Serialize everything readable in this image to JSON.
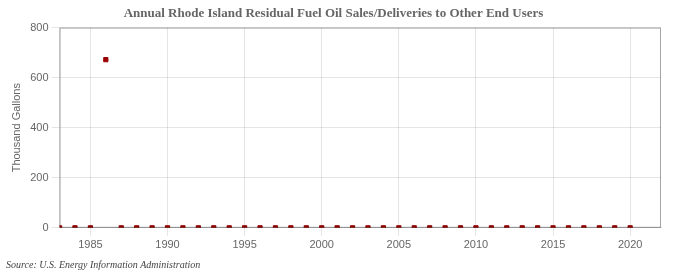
{
  "chart_data": {
    "type": "scatter",
    "title": "Annual Rhode Island Residual Fuel Oil Sales/Deliveries to Other End Users",
    "ylabel": "Thousand Gallons",
    "annotations": [
      "Source: U.S. Energy Information Administration"
    ],
    "x": [
      1983,
      1984,
      1985,
      1986,
      1987,
      1988,
      1989,
      1990,
      1991,
      1992,
      1993,
      1994,
      1995,
      1996,
      1997,
      1998,
      1999,
      2000,
      2001,
      2002,
      2003,
      2004,
      2005,
      2006,
      2007,
      2008,
      2009,
      2010,
      2011,
      2012,
      2013,
      2014,
      2015,
      2016,
      2017,
      2018,
      2019,
      2020
    ],
    "values": [
      0,
      0,
      0,
      672,
      0,
      0,
      0,
      0,
      0,
      0,
      0,
      0,
      0,
      0,
      0,
      0,
      0,
      0,
      0,
      0,
      0,
      0,
      0,
      0,
      0,
      0,
      0,
      0,
      0,
      0,
      0,
      0,
      0,
      0,
      0,
      0,
      0,
      0
    ],
    "color": "#990000",
    "marker": "square",
    "xlim": [
      1983,
      2022
    ],
    "xticks": [
      1985,
      1990,
      1995,
      2000,
      2005,
      2010,
      2015,
      2020
    ],
    "ylim": [
      0,
      800
    ],
    "yticks": [
      0,
      200,
      400,
      600,
      800
    ],
    "grid": true
  }
}
